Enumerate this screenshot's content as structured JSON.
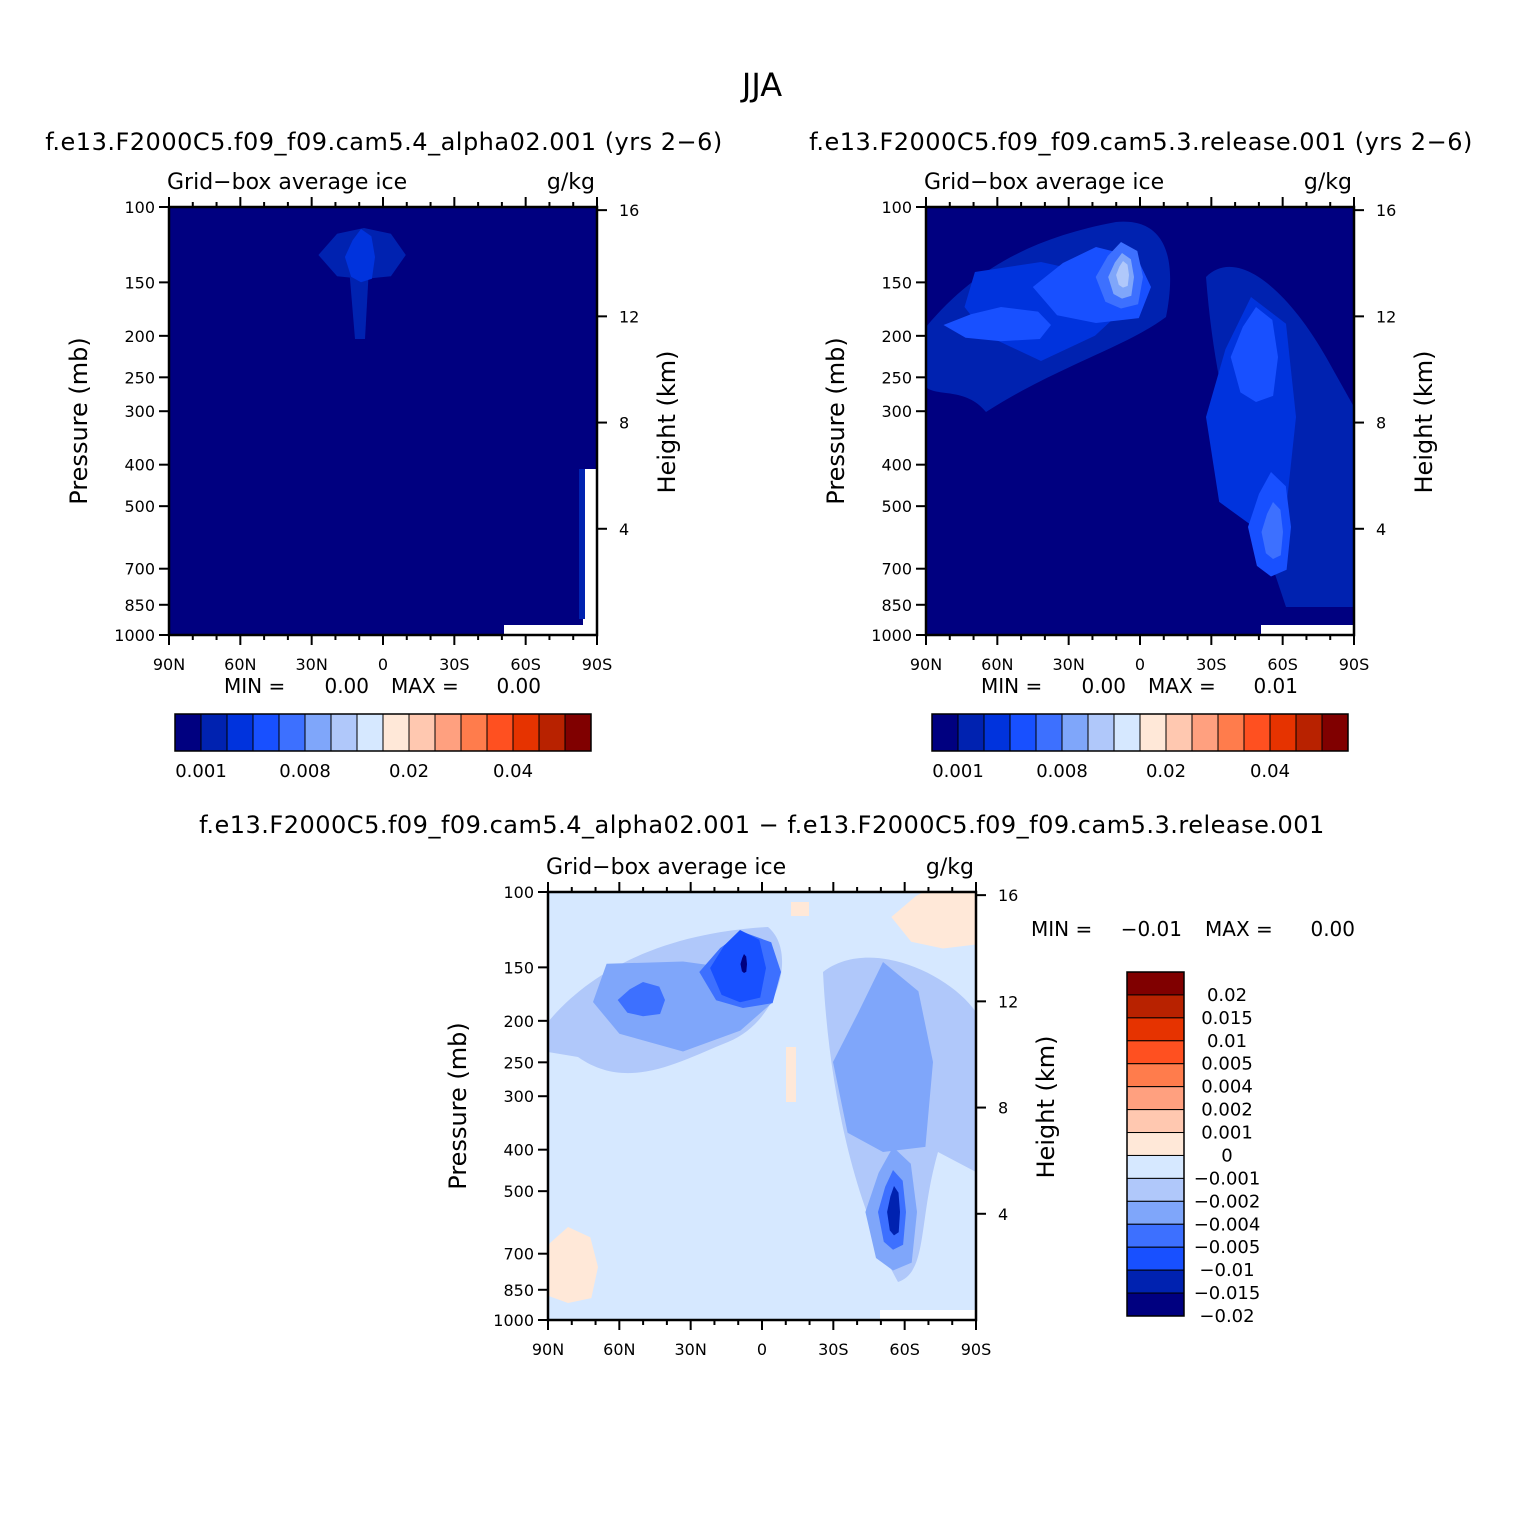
{
  "page_title": "JJA",
  "colors": {
    "scale": [
      "#000080",
      "#0022b0",
      "#0033dd",
      "#1850ff",
      "#3d70ff",
      "#7fa6fa",
      "#b0c8fa",
      "#d6e8ff",
      "#ffe8d8",
      "#ffc8b0",
      "#ffa07f",
      "#ff7c4c",
      "#ff5020",
      "#e63300",
      "#b82200",
      "#800000"
    ],
    "diff_scale": [
      "#000080",
      "#0022b0",
      "#1850ff",
      "#3d70ff",
      "#7fa6fa",
      "#b0c8fa",
      "#d6e8ff",
      "#ffe8d8",
      "#ffc8b0",
      "#ffa07f",
      "#ff7c4c",
      "#ff5020",
      "#e63300",
      "#b82200",
      "#800000"
    ]
  },
  "chart_data": [
    {
      "type": "heatmap",
      "title": "f.e13.F2000C5.f09_f09.cam5.4_alpha02.001 (yrs 2-6)",
      "subtitle_left": "Grid-box average ice",
      "subtitle_right": "g/kg",
      "xlabel": "",
      "ylabel": "Pressure (mb)",
      "ylabel_right": "Height (km)",
      "x_ticks": [
        "90N",
        "60N",
        "30N",
        "0",
        "30S",
        "60S",
        "90S"
      ],
      "y_ticks": [
        "100",
        "150",
        "200",
        "250",
        "300",
        "400",
        "500",
        "700",
        "850",
        "1000"
      ],
      "y_right_ticks": [
        "16",
        "12",
        "8",
        "4"
      ],
      "ylim": [
        1000,
        100
      ],
      "stats": {
        "min_label": "MIN =",
        "min": "0.00",
        "max_label": "MAX =",
        "max": "0.00"
      },
      "colorbar_labels": [
        "0.001",
        "0.008",
        "0.02",
        "0.04"
      ]
    },
    {
      "type": "heatmap",
      "title": "f.e13.F2000C5.f09_f09.cam5.3.release.001 (yrs 2-6)",
      "subtitle_left": "Grid-box average ice",
      "subtitle_right": "g/kg",
      "xlabel": "",
      "ylabel": "Pressure (mb)",
      "ylabel_right": "Height (km)",
      "x_ticks": [
        "90N",
        "60N",
        "30N",
        "0",
        "30S",
        "60S",
        "90S"
      ],
      "y_ticks": [
        "100",
        "150",
        "200",
        "250",
        "300",
        "400",
        "500",
        "700",
        "850",
        "1000"
      ],
      "y_right_ticks": [
        "16",
        "12",
        "8",
        "4"
      ],
      "ylim": [
        1000,
        100
      ],
      "stats": {
        "min_label": "MIN =",
        "min": "0.00",
        "max_label": "MAX =",
        "max": "0.01"
      },
      "colorbar_labels": [
        "0.001",
        "0.008",
        "0.02",
        "0.04"
      ]
    },
    {
      "type": "heatmap",
      "title": "f.e13.F2000C5.f09_f09.cam5.4_alpha02.001 - f.e13.F2000C5.f09_f09.cam5.3.release.001",
      "subtitle_left": "Grid-box average ice",
      "subtitle_right": "g/kg",
      "xlabel": "",
      "ylabel": "Pressure (mb)",
      "ylabel_right": "Height (km)",
      "x_ticks": [
        "90N",
        "60N",
        "30N",
        "0",
        "30S",
        "60S",
        "90S"
      ],
      "y_ticks": [
        "100",
        "150",
        "200",
        "250",
        "300",
        "400",
        "500",
        "700",
        "850",
        "1000"
      ],
      "y_right_ticks": [
        "16",
        "12",
        "8",
        "4"
      ],
      "ylim": [
        1000,
        100
      ],
      "stats": {
        "min_label": "MIN =",
        "min": "-0.01",
        "max_label": "MAX =",
        "max": "0.00"
      },
      "colorbar_labels": [
        "0.02",
        "0.015",
        "0.01",
        "0.005",
        "0.004",
        "0.002",
        "0.001",
        "0",
        "-0.001",
        "-0.002",
        "-0.004",
        "-0.005",
        "-0.01",
        "-0.015",
        "-0.02"
      ]
    }
  ]
}
